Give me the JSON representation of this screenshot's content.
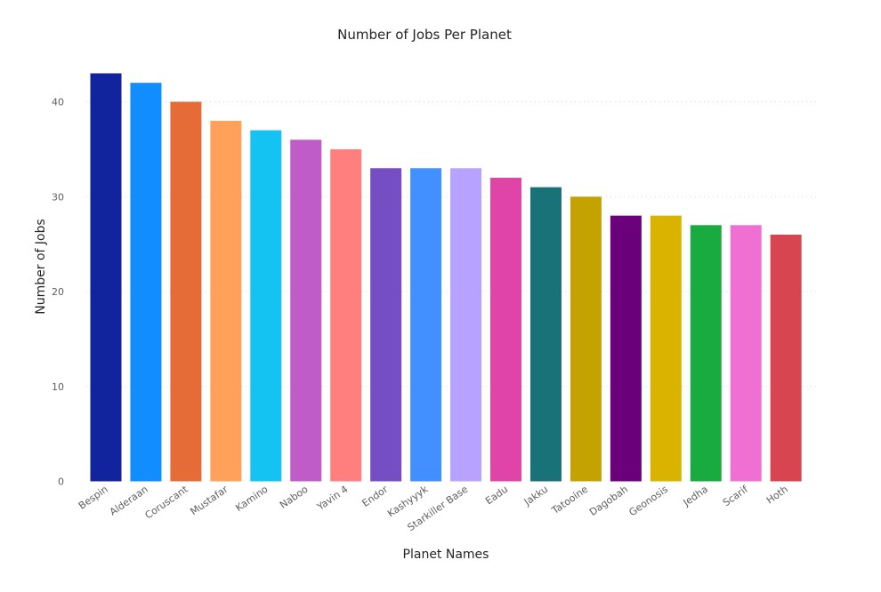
{
  "chart_data": {
    "type": "bar",
    "title": "Number of Jobs Per Planet",
    "xlabel": "Planet Names",
    "ylabel": "Number of Jobs",
    "ylim": [
      0,
      43
    ],
    "yticks": [
      0,
      10,
      20,
      30,
      40
    ],
    "grid": true,
    "categories": [
      "Bespin",
      "Alderaan",
      "Coruscant",
      "Mustafar",
      "Kamino",
      "Naboo",
      "Yavin 4",
      "Endor",
      "Kashyyyk",
      "Starkiller Base",
      "Eadu",
      "Jakku",
      "Tatooine",
      "Dagobah",
      "Geonosis",
      "Jedha",
      "Scarif",
      "Hoth"
    ],
    "values": [
      43,
      42,
      40,
      38,
      37,
      36,
      35,
      33,
      33,
      33,
      32,
      31,
      30,
      28,
      28,
      27,
      27,
      26
    ],
    "colors": [
      "#12239E",
      "#118DFF",
      "#E66C37",
      "#FFA15A",
      "#15C3F3",
      "#C05CC8",
      "#FF7F7F",
      "#744EC2",
      "#428FFF",
      "#B7A3FF",
      "#E044A7",
      "#197278",
      "#C4A300",
      "#6B007B",
      "#D9B300",
      "#1AAB40",
      "#F06FD3",
      "#D64550"
    ]
  }
}
